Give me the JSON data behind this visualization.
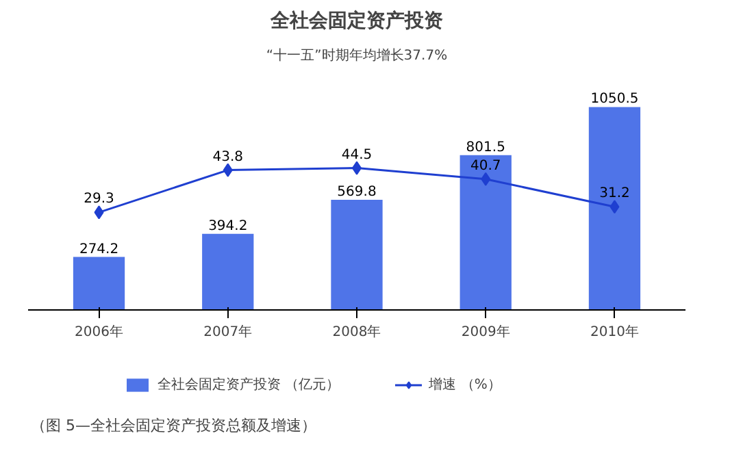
{
  "chart_data": {
    "type": "bar",
    "title": "全社会固定资产投资",
    "subtitle": "“十一五”时期年均增长37.7%",
    "categories": [
      "2006年",
      "2007年",
      "2008年",
      "2009年",
      "2010年"
    ],
    "series": [
      {
        "name": "全社会固定资产投资 （亿元）",
        "color": "#4f74e8",
        "values": [
          274.2,
          394.2,
          569.8,
          801.5,
          1050.5
        ]
      },
      {
        "name": "增速 （%）",
        "type": "line",
        "axis": "y2",
        "color": "#1f3fd0",
        "values": [
          29.3,
          43.8,
          44.5,
          40.7,
          31.2
        ]
      }
    ],
    "tick_labels": "x",
    "grid": false,
    "legend": "bottom",
    "marker": "diamond",
    "line_style": "solid",
    "data_labels": true,
    "annotations": [
      "（图 5—全社会固定资产投资总额及增速）"
    ]
  }
}
